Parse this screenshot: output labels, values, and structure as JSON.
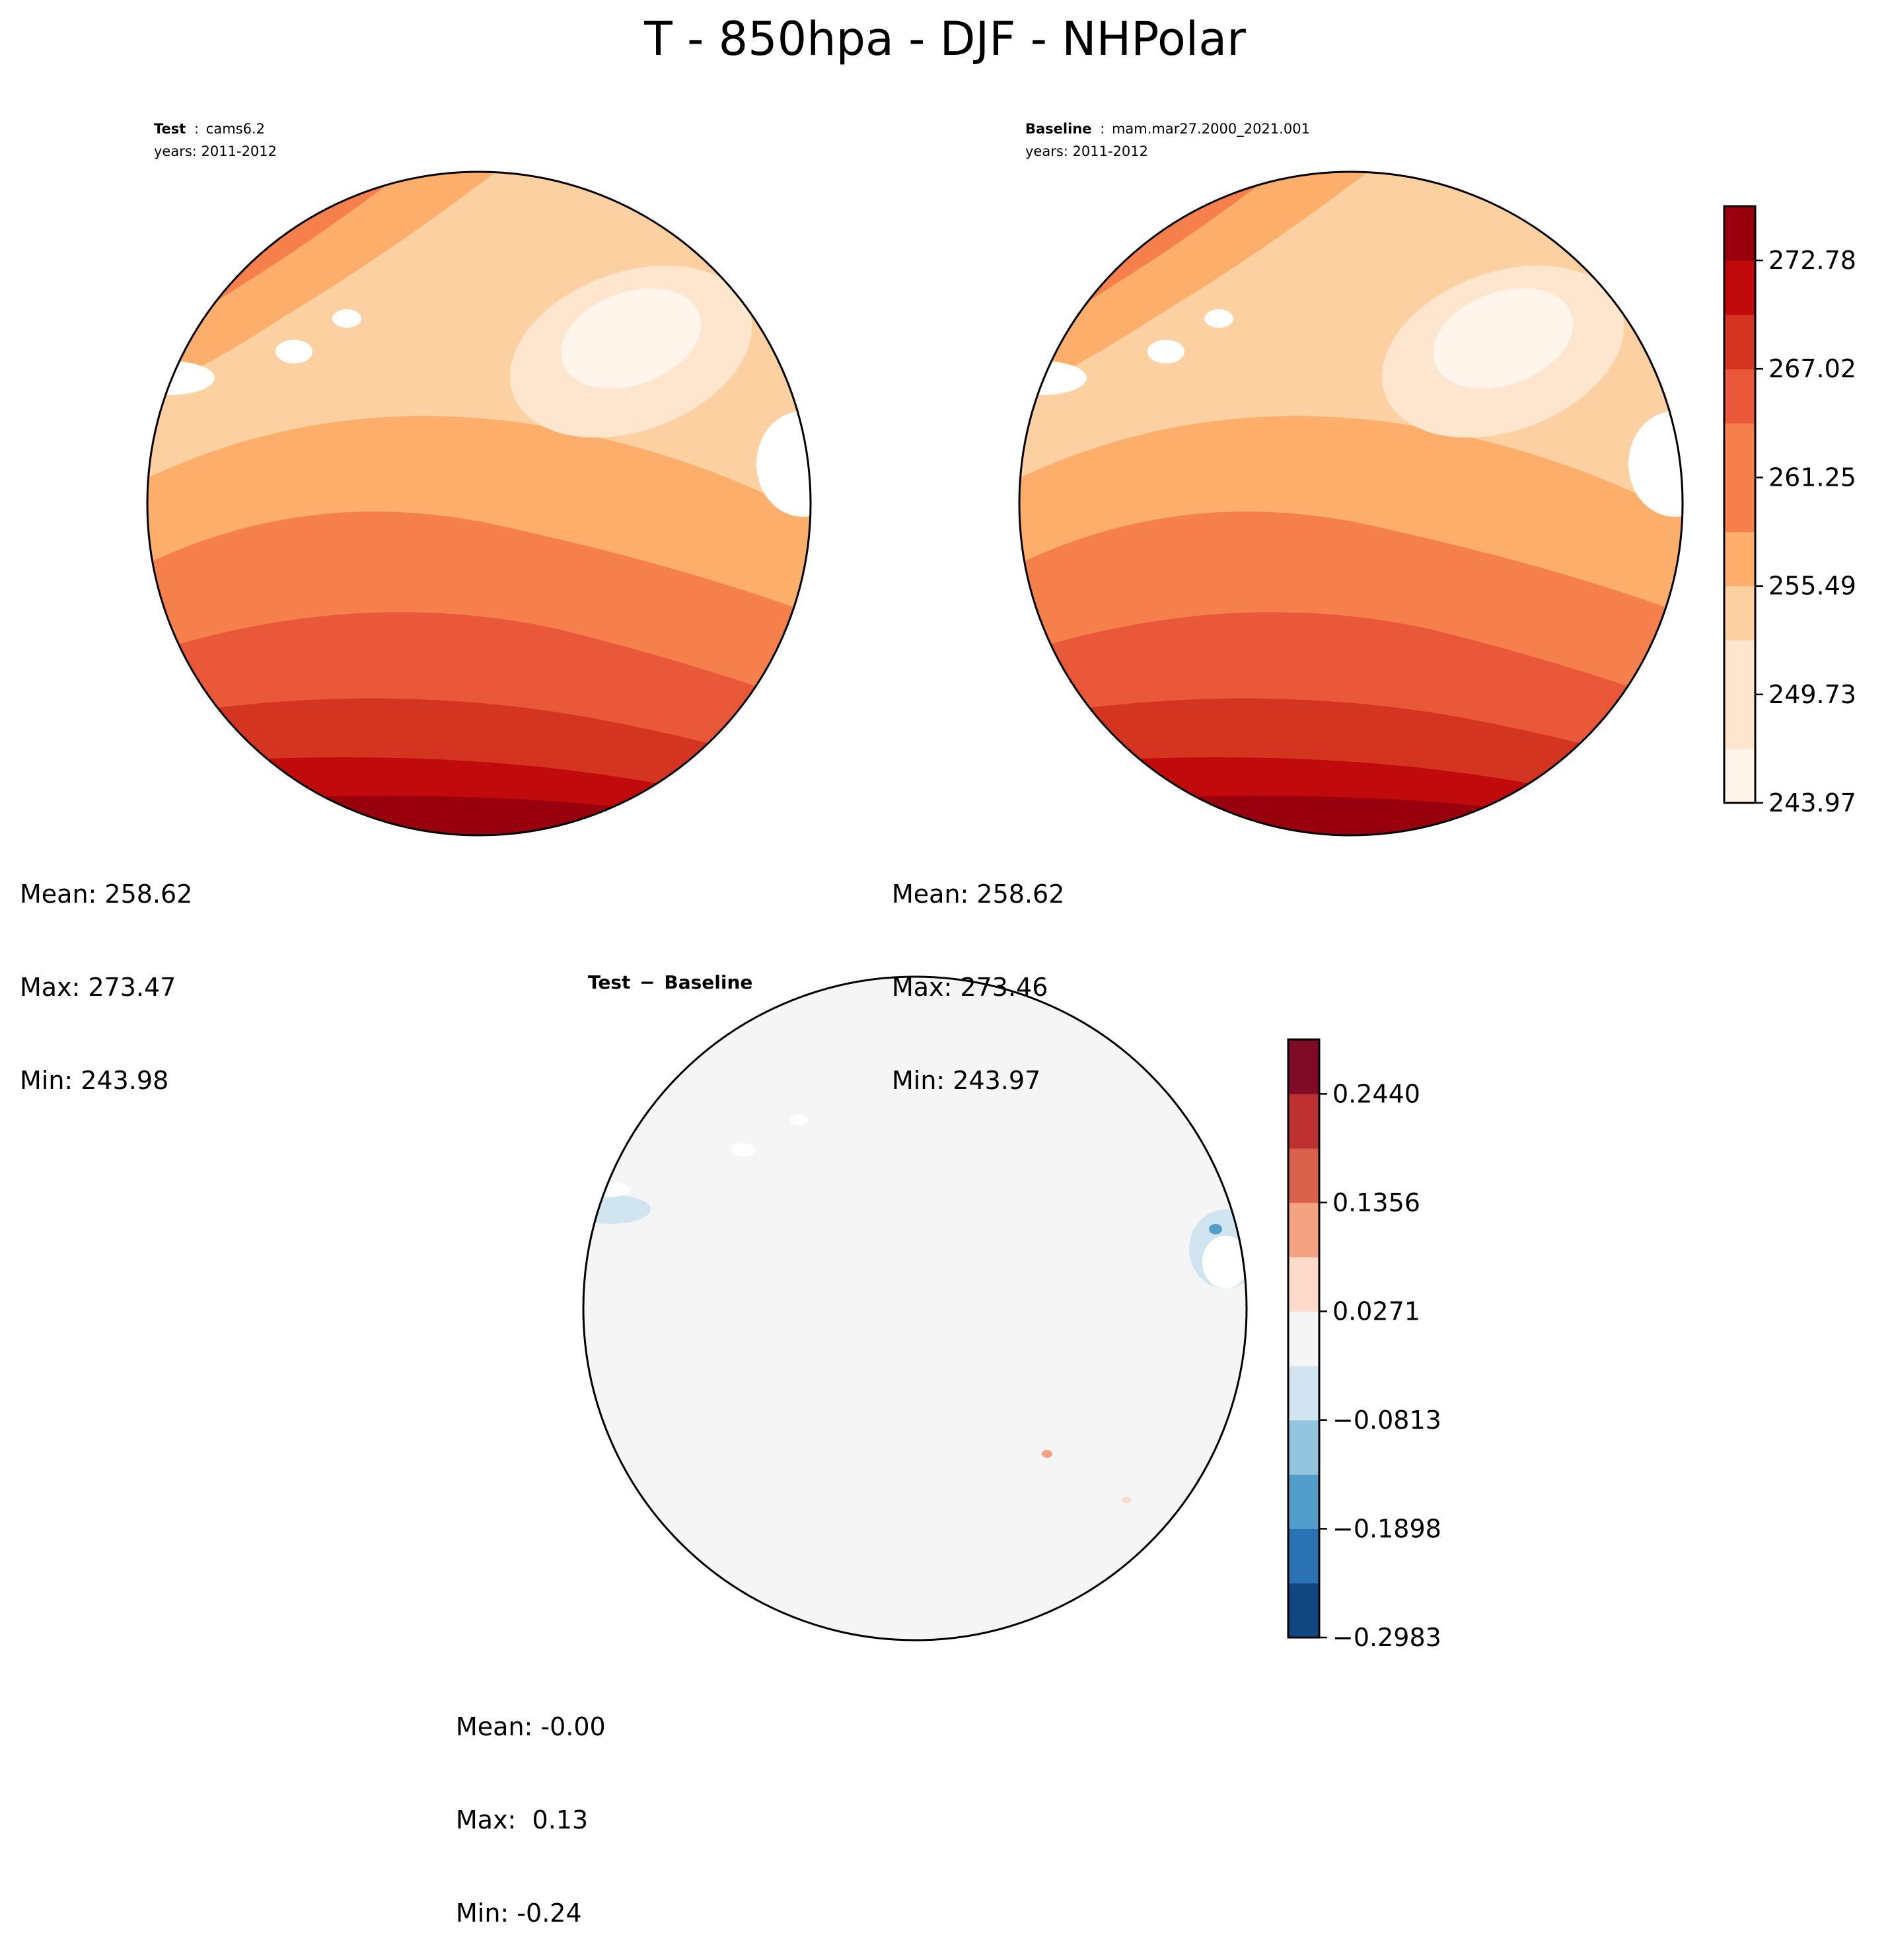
{
  "page": {
    "title": "T - 850hpa - DJF - NHPolar"
  },
  "colors": {
    "seq": [
      "#fff5eb",
      "#fee6ce",
      "#fdd0a2",
      "#fdae6b",
      "#f6804c",
      "#e95839",
      "#d43520",
      "#c00a0b",
      "#99000d"
    ],
    "div": [
      "#114781",
      "#2b72b4",
      "#539dca",
      "#94c5df",
      "#d1e5f0",
      "#f5f5f5",
      "#fddac9",
      "#f3a381",
      "#d9614b",
      "#be2f2f",
      "#7f0c26"
    ],
    "coast": "#000000",
    "land_white": "#ffffff"
  },
  "panels": {
    "test": {
      "label": "Test",
      "sep": ":",
      "case": "cams6.2",
      "years": "years: 2011-2012",
      "stats": {
        "mean": "Mean: 258.62",
        "max": "Max: 273.47",
        "min": "Min: 243.98"
      }
    },
    "baseline": {
      "label": "Baseline",
      "sep": ":",
      "case": "mam.mar27.2000_2021.001",
      "years": "years: 2011-2012",
      "stats": {
        "mean": "Mean: 258.62",
        "max": "Max: 273.46",
        "min": "Min: 243.97"
      }
    },
    "diff": {
      "title_a": "Test",
      "title_op": "−",
      "title_b": "Baseline",
      "stats": {
        "mean": "Mean: -0.00",
        "max": "Max:  0.13",
        "min": "Min: -0.24"
      }
    }
  },
  "chart_data": [
    {
      "type": "heatmap",
      "projection": "north-polar-stereographic",
      "title": "Test : cams6.2",
      "subtitle": "years: 2011-2012",
      "colormap": "RdOr sequential",
      "levels": [
        243.97,
        246.85,
        249.73,
        252.61,
        255.49,
        258.37,
        261.25,
        264.13,
        267.02,
        269.9,
        272.78,
        275.66
      ],
      "stats": {
        "mean": 258.62,
        "max": 273.47,
        "min": 243.98
      }
    },
    {
      "type": "heatmap",
      "projection": "north-polar-stereographic",
      "title": "Baseline : mam.mar27.2000_2021.001",
      "subtitle": "years: 2011-2012",
      "colormap": "RdOr sequential",
      "levels": [
        243.97,
        246.85,
        249.73,
        252.61,
        255.49,
        258.37,
        261.25,
        264.13,
        267.02,
        269.9,
        272.78,
        275.66
      ],
      "stats": {
        "mean": 258.62,
        "max": 273.46,
        "min": 243.97
      }
    },
    {
      "type": "heatmap",
      "projection": "north-polar-stereographic",
      "title": "Test − Baseline",
      "colormap": "RdBu diverging",
      "levels": [
        -0.2983,
        -0.2441,
        -0.1898,
        -0.1356,
        -0.0813,
        -0.0271,
        0.0271,
        0.0813,
        0.1356,
        0.1898,
        0.244,
        0.2983
      ],
      "stats": {
        "mean": -0.0,
        "max": 0.13,
        "min": -0.24
      }
    }
  ],
  "colorbars": {
    "abs": {
      "ticks": [
        "243.97",
        "249.73",
        "255.49",
        "261.25",
        "267.02",
        "272.78"
      ]
    },
    "diff": {
      "ticks": [
        "−0.2983",
        "−0.1898",
        "−0.0813",
        "0.0271",
        "0.1356",
        "0.2440"
      ]
    }
  }
}
